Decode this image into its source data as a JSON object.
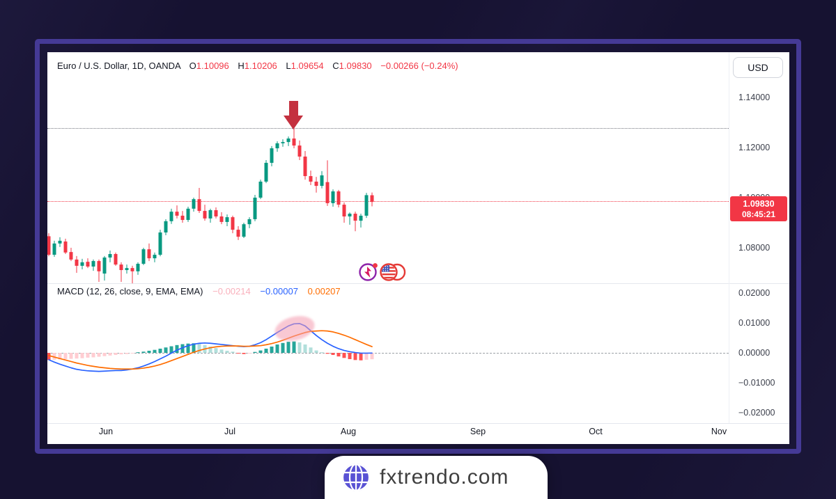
{
  "chart": {
    "legend": {
      "title": "Euro / U.S. Dollar, 1D, OANDA",
      "o_label": "O",
      "o_value": "1.10096",
      "h_label": "H",
      "h_value": "1.10206",
      "l_label": "L",
      "l_value": "1.09654",
      "c_label": "C",
      "c_value": "1.09830",
      "change": "−0.00266 (−0.24%)"
    },
    "currency_button": "USD",
    "badge": {
      "price": "1.09830",
      "time": "08:45:21"
    },
    "price_ticks": [
      {
        "label": "1.14000",
        "value": 1.14
      },
      {
        "label": "1.12000",
        "value": 1.12
      },
      {
        "label": "1.10000",
        "value": 1.1
      },
      {
        "label": "1.08000",
        "value": 1.08
      }
    ],
    "months": [
      "Jun",
      "Jul",
      "Aug",
      "Sep",
      "Oct",
      "Nov"
    ]
  },
  "macd": {
    "legend": "MACD (12, 26, close, 9, EMA, EMA)",
    "hist_value": "−0.00214",
    "macd_value": "−0.00007",
    "signal_value": "0.00207",
    "ticks": [
      {
        "label": "0.02000",
        "value": 0.02
      },
      {
        "label": "0.01000",
        "value": 0.01
      },
      {
        "label": "0.00000",
        "value": 0.0
      },
      {
        "label": "−0.01000",
        "value": -0.01
      },
      {
        "label": "−0.02000",
        "value": -0.02
      }
    ]
  },
  "footer": {
    "brand": "fxtrendo.com"
  },
  "annotations": {
    "down_arrow": "red down arrow above price peak at 1.1276",
    "highlight_ellipse": "pink ellipse over MACD/signal bearish crossover"
  },
  "event_icons": [
    "economic-event-flash-icon",
    "us-flag-event-icon"
  ],
  "colors": {
    "candle_up": "#089981",
    "candle_down": "#f23645",
    "macd_line": "#2962ff",
    "signal_line": "#ff6d00",
    "hist_pos_strong": "#26a69a",
    "hist_pos_weak": "#b2dfdb",
    "hist_neg_strong": "#ff5252",
    "hist_neg_weak": "#ffcdd2",
    "badge": "#f23645",
    "frame": "#453a96",
    "page_bg": "#161231",
    "dotted_high_line": "#73767f",
    "dotted_price_line": "#f23645"
  },
  "chart_data": {
    "type": "candlestick+macd",
    "symbol": "EUR/USD",
    "timeframe": "1D",
    "exchange": "OANDA",
    "title": "Euro / U.S. Dollar, 1D, OANDA",
    "x_axis_months": [
      "Jun",
      "Jul",
      "Aug",
      "Sep",
      "Oct",
      "Nov"
    ],
    "price_ylim": [
      1.066,
      1.158
    ],
    "macd_ylim": [
      -0.0235,
      0.0235
    ],
    "resistance_level": 1.1276,
    "current_price": 1.0983,
    "last_ohlc": {
      "open": 1.10096,
      "high": 1.10206,
      "low": 1.09654,
      "close": 1.0983,
      "change": -0.00266,
      "change_pct": -0.24
    },
    "candles": [
      [
        1.0846,
        1.0858,
        1.0766,
        1.0772
      ],
      [
        1.0772,
        1.0828,
        1.0764,
        1.0817
      ],
      [
        1.0817,
        1.0842,
        1.0803,
        1.0828
      ],
      [
        1.0825,
        1.0836,
        1.0775,
        1.0781
      ],
      [
        1.0783,
        1.08,
        1.0747,
        1.0753
      ],
      [
        1.0753,
        1.0767,
        1.07,
        1.0728
      ],
      [
        1.0728,
        1.0756,
        1.0714,
        1.0742
      ],
      [
        1.0744,
        1.0758,
        1.0719,
        1.0725
      ],
      [
        1.0725,
        1.0753,
        1.0708,
        1.0747
      ],
      [
        1.0747,
        1.0753,
        1.0664,
        1.0706
      ],
      [
        1.0697,
        1.0767,
        1.0669,
        1.0761
      ],
      [
        1.0761,
        1.0789,
        1.0742,
        1.0775
      ],
      [
        1.0775,
        1.0781,
        1.0728,
        1.0733
      ],
      [
        1.0733,
        1.0742,
        1.0664,
        1.0711
      ],
      [
        1.0711,
        1.0733,
        1.0697,
        1.0719
      ],
      [
        1.0719,
        1.0728,
        1.0658,
        1.0706
      ],
      [
        1.0706,
        1.0742,
        1.0692,
        1.0736
      ],
      [
        1.0736,
        1.08,
        1.0731,
        1.0794
      ],
      [
        1.0794,
        1.0817,
        1.0747,
        1.0758
      ],
      [
        1.0758,
        1.0781,
        1.0742,
        1.0772
      ],
      [
        1.0772,
        1.0872,
        1.0766,
        1.0861
      ],
      [
        1.0861,
        1.0914,
        1.085,
        1.0906
      ],
      [
        1.0906,
        1.0956,
        1.0895,
        1.0944
      ],
      [
        1.0944,
        1.0969,
        1.0917,
        1.0928
      ],
      [
        1.0928,
        1.0947,
        1.09,
        1.0911
      ],
      [
        1.0911,
        1.0964,
        1.0903,
        1.0956
      ],
      [
        1.0956,
        1.1,
        1.0944,
        1.0994
      ],
      [
        1.0994,
        1.1039,
        1.0939,
        1.0947
      ],
      [
        1.0947,
        1.0972,
        1.0908,
        1.0917
      ],
      [
        1.0917,
        1.0956,
        1.09,
        1.095
      ],
      [
        1.095,
        1.0961,
        1.0917,
        1.0925
      ],
      [
        1.0925,
        1.0942,
        1.0894,
        1.0903
      ],
      [
        1.0903,
        1.0933,
        1.0886,
        1.0922
      ],
      [
        1.0922,
        1.0928,
        1.0858,
        1.0872
      ],
      [
        1.0872,
        1.0886,
        1.0831,
        1.0844
      ],
      [
        1.0844,
        1.09,
        1.0839,
        1.0894
      ],
      [
        1.0894,
        1.0922,
        1.0878,
        1.0914
      ],
      [
        1.0914,
        1.1011,
        1.0906,
        1.1
      ],
      [
        1.1,
        1.1072,
        1.0994,
        1.1064
      ],
      [
        1.1064,
        1.115,
        1.1058,
        1.1139
      ],
      [
        1.1139,
        1.1206,
        1.1125,
        1.1197
      ],
      [
        1.1197,
        1.1225,
        1.1183,
        1.1217
      ],
      [
        1.1217,
        1.1233,
        1.1203,
        1.1222
      ],
      [
        1.1222,
        1.1244,
        1.1206,
        1.1236
      ],
      [
        1.1236,
        1.1276,
        1.1197,
        1.1208
      ],
      [
        1.1208,
        1.1228,
        1.115,
        1.1164
      ],
      [
        1.1164,
        1.1186,
        1.1072,
        1.1086
      ],
      [
        1.1086,
        1.1108,
        1.105,
        1.1064
      ],
      [
        1.1064,
        1.1083,
        1.102,
        1.1047
      ],
      [
        1.1047,
        1.1106,
        1.1037,
        1.1089
      ],
      [
        1.1062,
        1.1149,
        1.0967,
        1.0978
      ],
      [
        1.0978,
        1.1033,
        1.0964,
        1.1025
      ],
      [
        1.1025,
        1.1031,
        1.0961,
        1.0972
      ],
      [
        1.0972,
        1.0981,
        1.09,
        1.0925
      ],
      [
        1.0925,
        1.0941,
        1.0892,
        1.0936
      ],
      [
        1.0936,
        1.0944,
        1.0866,
        1.0908
      ],
      [
        1.0908,
        1.0936,
        1.0881,
        1.0928
      ],
      [
        1.0928,
        1.1019,
        1.0919,
        1.101
      ],
      [
        1.10096,
        1.10206,
        1.09654,
        1.0983
      ]
    ],
    "macd_series": {
      "params": "12, 26, close, 9, EMA, EMA",
      "macd_line": [
        -0.0023,
        -0.0031,
        -0.0038,
        -0.0044,
        -0.005,
        -0.0055,
        -0.0058,
        -0.006,
        -0.0061,
        -0.0062,
        -0.0061,
        -0.006,
        -0.0059,
        -0.0059,
        -0.0057,
        -0.0054,
        -0.005,
        -0.0044,
        -0.0037,
        -0.0029,
        -0.002,
        -0.0011,
        -0.0001,
        0.0009,
        0.0017,
        0.0024,
        0.0029,
        0.0032,
        0.0033,
        0.0032,
        0.003,
        0.0028,
        0.0026,
        0.0024,
        0.0022,
        0.0021,
        0.0022,
        0.0027,
        0.0034,
        0.0044,
        0.0056,
        0.0068,
        0.0079,
        0.009,
        0.0097,
        0.0098,
        0.009,
        0.0074,
        0.0058,
        0.0044,
        0.0032,
        0.0022,
        0.0014,
        0.0008,
        0.0004,
        0.0001,
        -0.0001,
        -0.0001,
        -7e-05
      ],
      "signal_line": [
        -0.0009,
        -0.0014,
        -0.0019,
        -0.0024,
        -0.0029,
        -0.0034,
        -0.0038,
        -0.0042,
        -0.0045,
        -0.0048,
        -0.005,
        -0.0052,
        -0.0053,
        -0.0054,
        -0.0054,
        -0.0054,
        -0.0053,
        -0.0051,
        -0.0048,
        -0.0044,
        -0.0039,
        -0.0033,
        -0.0026,
        -0.0019,
        -0.0012,
        -0.0005,
        0.0002,
        0.0008,
        0.0013,
        0.0017,
        0.002,
        0.0022,
        0.0023,
        0.0023,
        0.0023,
        0.0022,
        0.0022,
        0.0023,
        0.0024,
        0.0027,
        0.0031,
        0.0036,
        0.0042,
        0.0049,
        0.0056,
        0.0062,
        0.0068,
        0.0072,
        0.0073,
        0.0074,
        0.0073,
        0.007,
        0.0065,
        0.0059,
        0.0052,
        0.0044,
        0.0036,
        0.0028,
        0.00207
      ],
      "histogram": [
        -0.0024,
        -0.0023,
        -0.0022,
        -0.0021,
        -0.002,
        -0.0019,
        -0.0018,
        -0.0016,
        -0.0015,
        -0.0013,
        -0.0011,
        -0.0009,
        -0.0007,
        -0.0005,
        -0.0004,
        -0.0002,
        0.0002,
        0.0004,
        0.0007,
        0.001,
        0.0014,
        0.0018,
        0.0022,
        0.0026,
        0.0029,
        0.0031,
        0.0032,
        0.003,
        0.0026,
        0.0021,
        0.0016,
        0.0011,
        0.0007,
        0.0004,
        -0.0002,
        -0.0004,
        -0.0002,
        0.0003,
        0.0008,
        0.0014,
        0.0021,
        0.0028,
        0.0033,
        0.0037,
        0.0038,
        0.0035,
        0.0028,
        0.0018,
        0.0008,
        0.0002,
        -0.0003,
        -0.0007,
        -0.0012,
        -0.0017,
        -0.0021,
        -0.0024,
        -0.0025,
        -0.0023,
        -0.00214
      ]
    }
  }
}
